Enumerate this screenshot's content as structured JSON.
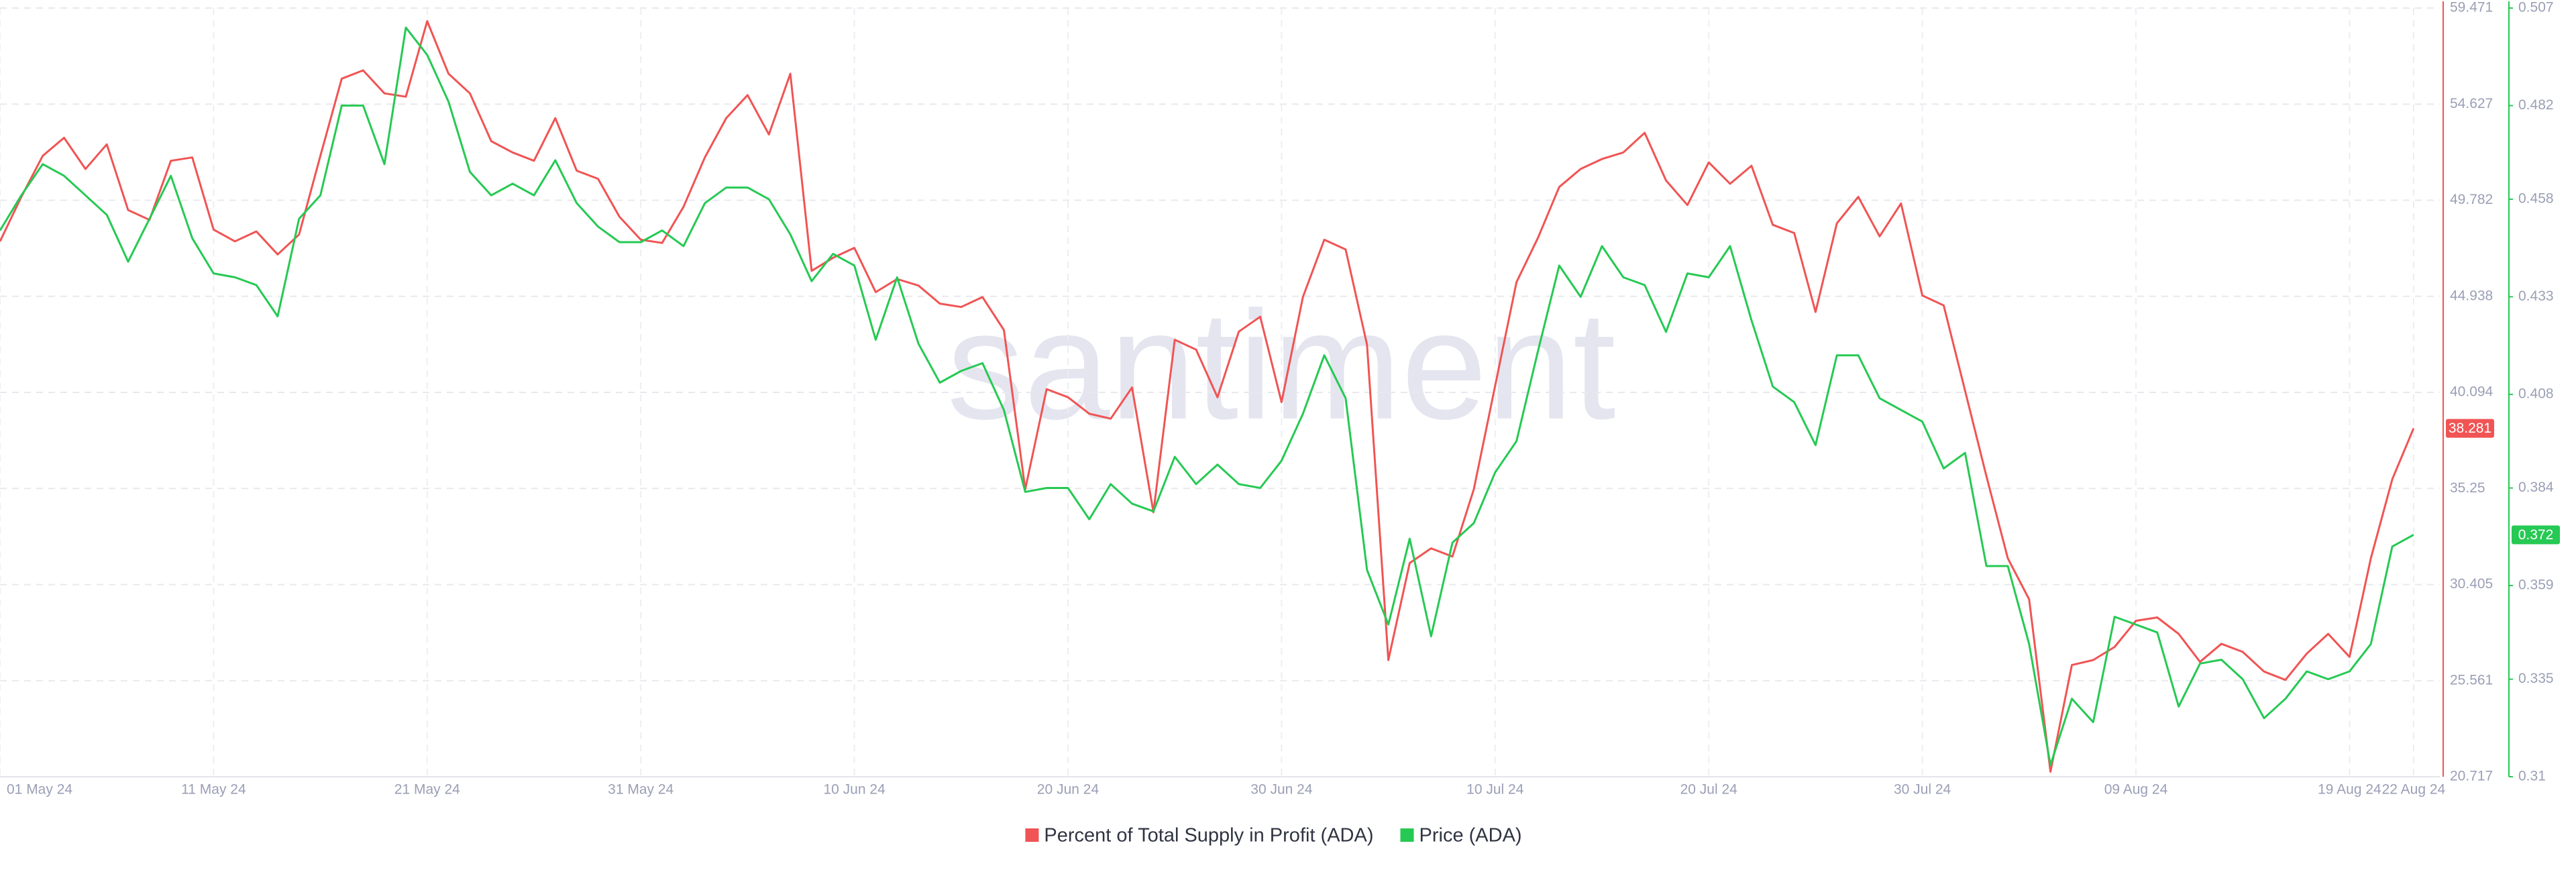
{
  "chart_data": {
    "type": "line",
    "watermark": "santiment",
    "categories": [
      "01 May 24",
      null,
      null,
      null,
      null,
      null,
      null,
      null,
      null,
      null,
      "11 May 24",
      null,
      null,
      null,
      null,
      null,
      null,
      null,
      null,
      null,
      "21 May 24",
      null,
      null,
      null,
      null,
      null,
      null,
      null,
      null,
      null,
      "31 May 24",
      null,
      null,
      null,
      null,
      null,
      null,
      null,
      null,
      null,
      "10 Jun 24",
      null,
      null,
      null,
      null,
      null,
      null,
      null,
      null,
      null,
      "20 Jun 24",
      null,
      null,
      null,
      null,
      null,
      null,
      null,
      null,
      null,
      "30 Jun 24",
      null,
      null,
      null,
      null,
      null,
      null,
      null,
      null,
      null,
      "10 Jul 24",
      null,
      null,
      null,
      null,
      null,
      null,
      null,
      null,
      null,
      "20 Jul 24",
      null,
      null,
      null,
      null,
      null,
      null,
      null,
      null,
      null,
      "30 Jul 24",
      null,
      null,
      null,
      null,
      null,
      null,
      null,
      null,
      null,
      "09 Aug 24",
      null,
      null,
      null,
      null,
      null,
      null,
      null,
      null,
      null,
      "19 Aug 24",
      null,
      null,
      "22 Aug 24"
    ],
    "series": [
      {
        "name": "Percent of Total Supply in Profit (ADA)",
        "color": "#f05454",
        "values": [
          47.71,
          49.95,
          52.02,
          52.93,
          51.36,
          52.6,
          49.29,
          48.79,
          51.77,
          51.94,
          48.3,
          47.71,
          48.21,
          47.05,
          48.05,
          52.02,
          55.91,
          56.33,
          55.17,
          55.0,
          58.81,
          56.16,
          55.17,
          52.76,
          52.19,
          51.77,
          53.92,
          51.27,
          50.86,
          48.95,
          47.79,
          47.63,
          49.45,
          51.94,
          53.92,
          55.08,
          53.1,
          56.16,
          46.22,
          46.88,
          47.38,
          45.15,
          45.81,
          45.48,
          44.57,
          44.4,
          44.9,
          43.24,
          35.21,
          40.26,
          39.85,
          39.02,
          38.77,
          40.34,
          34.05,
          42.75,
          42.25,
          39.85,
          43.16,
          43.91,
          39.6,
          44.9,
          47.79,
          47.3,
          42.5,
          26.6,
          31.49,
          32.23,
          31.82,
          35.21,
          40.43,
          45.65,
          47.88,
          50.45,
          51.36,
          51.86,
          52.19,
          53.18,
          50.78,
          49.54,
          51.69,
          50.61,
          51.52,
          48.54,
          48.13,
          44.15,
          48.62,
          49.95,
          47.96,
          49.62,
          44.98,
          44.48,
          40.18,
          35.87,
          31.73,
          29.66,
          20.97,
          26.35,
          26.6,
          27.26,
          28.58,
          28.75,
          27.92,
          26.51,
          27.42,
          27.01,
          26.02,
          25.6,
          26.93,
          27.92,
          26.76,
          31.73,
          35.71,
          38.281
        ]
      },
      {
        "name": "Price (ADA)",
        "color": "#26c953",
        "axis": "y2",
        "values": [
          0.45,
          0.459,
          0.467,
          0.464,
          0.459,
          0.454,
          0.442,
          0.453,
          0.464,
          0.448,
          0.439,
          0.438,
          0.436,
          0.428,
          0.453,
          0.459,
          0.482,
          0.482,
          0.467,
          0.502,
          0.495,
          0.483,
          0.465,
          0.459,
          0.462,
          0.459,
          0.468,
          0.457,
          0.451,
          0.447,
          0.447,
          0.45,
          0.446,
          0.457,
          0.461,
          0.461,
          0.458,
          0.449,
          0.437,
          0.444,
          0.441,
          0.422,
          0.438,
          0.421,
          0.411,
          0.414,
          0.416,
          0.404,
          0.383,
          0.384,
          0.384,
          0.376,
          0.385,
          0.38,
          0.378,
          0.392,
          0.385,
          0.39,
          0.385,
          0.384,
          0.391,
          0.403,
          0.418,
          0.407,
          0.363,
          0.349,
          0.371,
          0.346,
          0.37,
          0.375,
          0.388,
          0.396,
          0.419,
          0.441,
          0.433,
          0.446,
          0.438,
          0.436,
          0.424,
          0.439,
          0.438,
          0.446,
          0.427,
          0.41,
          0.406,
          0.395,
          0.418,
          0.418,
          0.407,
          0.404,
          0.401,
          0.389,
          0.393,
          0.364,
          0.364,
          0.344,
          0.313,
          0.33,
          0.324,
          0.351,
          0.349,
          0.347,
          0.328,
          0.339,
          0.34,
          0.335,
          0.325,
          0.33,
          0.337,
          0.335,
          0.337,
          0.344,
          0.369,
          0.372
        ]
      }
    ],
    "ylim": [
      20.717,
      59.471
    ],
    "yticks": [
      20.717,
      25.561,
      30.405,
      35.25,
      40.094,
      44.938,
      49.782,
      54.627,
      59.471
    ],
    "y2lim": [
      0.31,
      0.507
    ],
    "y2ticks": [
      0.31,
      0.335,
      0.359,
      0.384,
      0.408,
      0.433,
      0.458,
      0.482,
      0.507
    ],
    "grid": true
  }
}
